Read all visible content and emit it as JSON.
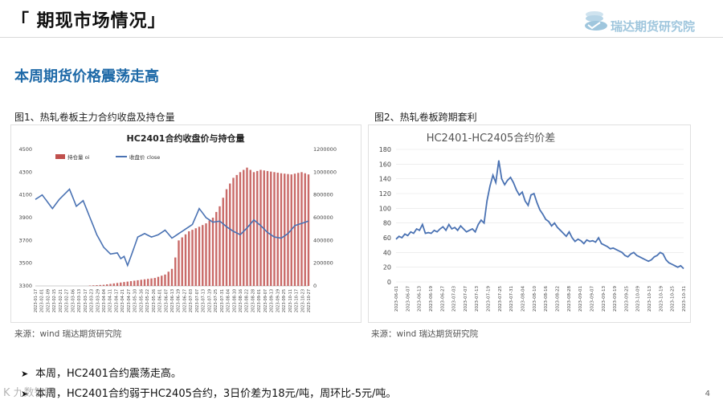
{
  "header": {
    "slide_title": "「 期现市场情况」",
    "logo_text": "瑞达期货研究院"
  },
  "headline": "本周期货价格震荡走高",
  "figures": [
    {
      "caption": "图1、热轧卷板主力合约收盘及持仓量",
      "source": "来源：wind    瑞达期货研究院"
    },
    {
      "caption": "图2、热轧卷板跨期套利",
      "source": "来源：wind    瑞达期货研究院"
    }
  ],
  "bullets": [
    "本周，HC2401合约震荡走高。",
    "本周，HC2401合约弱于HC2405合约，3日价差为18元/吨，周环比-5元/吨。"
  ],
  "page_number": "4",
  "watermark": "K 九数智眼",
  "colors": {
    "accent": "#1f6aa8",
    "bar": "#c0504d",
    "line": "#4a72b3"
  },
  "chart_data": [
    {
      "type": "bar+line",
      "title": "HC2401合约收盘价与持仓量",
      "legend": [
        "持仓量 oi",
        "收盘价 close"
      ],
      "legend_position": "top-left",
      "y_left": {
        "ticks": [
          "4500",
          "4300",
          "4100",
          "3900",
          "3700",
          "3500",
          "3300"
        ],
        "range": [
          3300,
          4500
        ]
      },
      "y_right": {
        "ticks": [
          "1200000",
          "1000000",
          "800000",
          "600000",
          "400000",
          "200000",
          "0"
        ],
        "range": [
          0,
          1200000
        ]
      },
      "x_labels": [
        "2023-01-17",
        "2023-02-01",
        "2023-02-09",
        "2023-02-15",
        "2023-02-21",
        "2023-02-27",
        "2023-03-06",
        "2023-03-13",
        "2023-03-17",
        "2023-03-23",
        "2023-03-29",
        "2023-04-04",
        "2023-04-11",
        "2023-04-17",
        "2023-04-21",
        "2023-04-27",
        "2023-05-10",
        "2023-05-16",
        "2023-05-22",
        "2023-05-26",
        "2023-06-01",
        "2023-06-07",
        "2023-06-13",
        "2023-06-19",
        "2023-06-27",
        "2023-07-03",
        "2023-07-07",
        "2023-07-13",
        "2023-07-19",
        "2023-07-25",
        "2023-07-31",
        "2023-08-04",
        "2023-08-10",
        "2023-08-16",
        "2023-08-22",
        "2023-08-28",
        "2023-09-01",
        "2023-09-07",
        "2023-09-13",
        "2023-09-19",
        "2023-09-25",
        "2023-10-11",
        "2023-10-17",
        "2023-10-23",
        "2023-10-27"
      ],
      "close_keypoints": [
        [
          0,
          4060
        ],
        [
          2,
          4100
        ],
        [
          5,
          3980
        ],
        [
          7,
          4060
        ],
        [
          10,
          4150
        ],
        [
          12,
          4000
        ],
        [
          14,
          4050
        ],
        [
          16,
          3900
        ],
        [
          18,
          3750
        ],
        [
          20,
          3640
        ],
        [
          22,
          3580
        ],
        [
          24,
          3590
        ],
        [
          25,
          3540
        ],
        [
          26,
          3560
        ],
        [
          27,
          3480
        ],
        [
          28,
          3560
        ],
        [
          30,
          3730
        ],
        [
          32,
          3760
        ],
        [
          34,
          3730
        ],
        [
          36,
          3750
        ],
        [
          38,
          3790
        ],
        [
          40,
          3720
        ],
        [
          42,
          3760
        ],
        [
          44,
          3800
        ],
        [
          46,
          3840
        ],
        [
          48,
          3980
        ],
        [
          50,
          3900
        ],
        [
          52,
          3860
        ],
        [
          54,
          3870
        ],
        [
          56,
          3820
        ],
        [
          58,
          3780
        ],
        [
          60,
          3750
        ],
        [
          62,
          3810
        ],
        [
          64,
          3880
        ],
        [
          66,
          3830
        ],
        [
          68,
          3770
        ],
        [
          70,
          3730
        ],
        [
          72,
          3720
        ],
        [
          74,
          3760
        ],
        [
          76,
          3830
        ],
        [
          78,
          3850
        ],
        [
          80,
          3870
        ]
      ],
      "oi_keypoints": [
        [
          0,
          0
        ],
        [
          15,
          2000
        ],
        [
          20,
          10000
        ],
        [
          25,
          30000
        ],
        [
          30,
          50000
        ],
        [
          35,
          70000
        ],
        [
          38,
          100000
        ],
        [
          40,
          150000
        ],
        [
          41,
          250000
        ],
        [
          42,
          400000
        ],
        [
          45,
          480000
        ],
        [
          48,
          520000
        ],
        [
          50,
          550000
        ],
        [
          52,
          600000
        ],
        [
          54,
          700000
        ],
        [
          56,
          850000
        ],
        [
          58,
          950000
        ],
        [
          60,
          1000000
        ],
        [
          62,
          1040000
        ],
        [
          64,
          1000000
        ],
        [
          66,
          1020000
        ],
        [
          68,
          1010000
        ],
        [
          70,
          1000000
        ],
        [
          72,
          990000
        ],
        [
          75,
          980000
        ],
        [
          78,
          1000000
        ],
        [
          80,
          980000
        ]
      ],
      "n_points": 81
    },
    {
      "type": "line",
      "title": "HC2401-HC2405合约价差",
      "y_ticks": [
        "180",
        "160",
        "140",
        "120",
        "100",
        "80",
        "60",
        "40",
        "20",
        "0"
      ],
      "ylim": [
        0,
        180
      ],
      "x_labels": [
        "2023-06-01",
        "2023-06-07",
        "2023-06-13",
        "2023-06-19",
        "2023-06-27",
        "2023-07-03",
        "2023-07-07",
        "2023-07-13",
        "2023-07-19",
        "2023-07-25",
        "2023-07-31",
        "2023-08-04",
        "2023-08-10",
        "2023-08-16",
        "2023-08-22",
        "2023-08-28",
        "2023-09-01",
        "2023-09-07",
        "2023-09-13",
        "2023-09-19",
        "2023-09-25",
        "2023-10-09",
        "2023-10-13",
        "2023-10-19",
        "2023-10-25",
        "2023-10-31"
      ],
      "values": [
        58,
        62,
        60,
        65,
        63,
        68,
        66,
        72,
        70,
        78,
        66,
        67,
        66,
        70,
        68,
        72,
        75,
        70,
        78,
        72,
        74,
        70,
        76,
        72,
        68,
        70,
        72,
        68,
        78,
        84,
        80,
        110,
        130,
        145,
        135,
        165,
        140,
        132,
        138,
        142,
        135,
        125,
        118,
        122,
        110,
        104,
        118,
        120,
        108,
        98,
        92,
        85,
        82,
        76,
        80,
        74,
        70,
        66,
        62,
        68,
        60,
        55,
        58,
        56,
        52,
        57,
        55,
        56,
        54,
        60,
        52,
        50,
        48,
        45,
        46,
        44,
        42,
        40,
        36,
        34,
        38,
        40,
        36,
        34,
        32,
        30,
        28,
        30,
        34,
        36,
        40,
        38,
        30,
        26,
        24,
        22,
        20,
        22,
        18
      ]
    }
  ]
}
